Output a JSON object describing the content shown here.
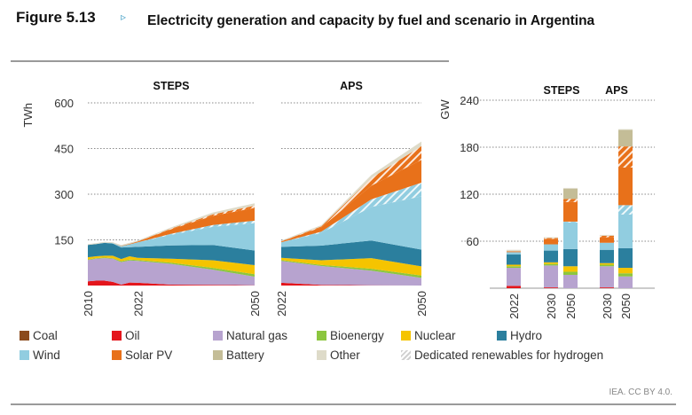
{
  "header": {
    "figure_label": "Figure 5.13",
    "arrow_icon": "▹",
    "title": "Electricity generation and capacity by fuel and scenario in Argentina"
  },
  "credit": "IEA. CC BY 4.0.",
  "colors": {
    "Coal": "#8b4a1c",
    "Oil": "#e4151c",
    "Natural gas": "#b7a3cf",
    "Bioenergy": "#8cc63f",
    "Nuclear": "#f5c400",
    "Hydro": "#2b7f9e",
    "Wind": "#91cde0",
    "Solar PV": "#e8711a",
    "Battery": "#c4bd97",
    "Other": "#dedbc9",
    "Dedicated renewables for hydrogen": "#d0d0d0"
  },
  "legend": [
    {
      "label": "Coal",
      "key": "Coal"
    },
    {
      "label": "Oil",
      "key": "Oil"
    },
    {
      "label": "Natural gas",
      "key": "Natural gas"
    },
    {
      "label": "Bioenergy",
      "key": "Bioenergy"
    },
    {
      "label": "Nuclear",
      "key": "Nuclear"
    },
    {
      "label": "Hydro",
      "key": "Hydro"
    },
    {
      "label": "Wind",
      "key": "Wind"
    },
    {
      "label": "Solar PV",
      "key": "Solar PV"
    },
    {
      "label": "Battery",
      "key": "Battery"
    },
    {
      "label": "Other",
      "key": "Other"
    },
    {
      "label": "Dedicated renewables for hydrogen",
      "key": "Dedicated renewables for hydrogen",
      "hatched": true
    }
  ],
  "chart_data": [
    {
      "type": "area",
      "title": "STEPS",
      "ylabel": "TWh",
      "ylim": [
        0,
        600
      ],
      "yticks": [
        150,
        300,
        450,
        600
      ],
      "xticks": [
        "2010",
        "2022",
        "2050"
      ],
      "grid": true,
      "x": [
        2010,
        2012,
        2014,
        2016,
        2018,
        2020,
        2022,
        2030,
        2040,
        2050
      ],
      "series": [
        {
          "name": "Oil",
          "values": [
            14,
            16,
            16,
            12,
            3,
            10,
            9,
            3,
            2,
            1
          ]
        },
        {
          "name": "Natural gas",
          "values": [
            70,
            72,
            74,
            76,
            74,
            72,
            72,
            68,
            50,
            28
          ]
        },
        {
          "name": "Bioenergy",
          "values": [
            2,
            2,
            2,
            2,
            3,
            3,
            3,
            4,
            6,
            8
          ]
        },
        {
          "name": "Nuclear",
          "values": [
            7,
            6,
            6,
            8,
            7,
            11,
            7,
            13,
            25,
            30
          ]
        },
        {
          "name": "Hydro",
          "values": [
            40,
            40,
            42,
            40,
            38,
            30,
            36,
            44,
            50,
            48
          ]
        },
        {
          "name": "Wind",
          "values": [
            0,
            0,
            1,
            1,
            4,
            9,
            15,
            35,
            60,
            90
          ]
        },
        {
          "name": "Wind (hydrogen)",
          "hatched": true,
          "values": [
            0,
            0,
            0,
            0,
            0,
            0,
            0,
            3,
            6,
            8
          ]
        },
        {
          "name": "Solar PV",
          "values": [
            0,
            0,
            0,
            0,
            1,
            2,
            3,
            15,
            30,
            42
          ]
        },
        {
          "name": "Solar PV (hydrogen)",
          "hatched": true,
          "values": [
            0,
            0,
            0,
            0,
            0,
            0,
            0,
            2,
            5,
            7
          ]
        },
        {
          "name": "Other",
          "values": [
            3,
            3,
            3,
            3,
            3,
            3,
            3,
            4,
            6,
            8
          ]
        }
      ]
    },
    {
      "type": "area",
      "title": "APS",
      "ylabel": "TWh",
      "ylim": [
        0,
        600
      ],
      "yticks": [
        150,
        300,
        450,
        600
      ],
      "xticks": [
        "2022",
        "2050"
      ],
      "grid": true,
      "x": [
        2022,
        2030,
        2040,
        2050
      ],
      "series": [
        {
          "name": "Oil",
          "values": [
            9,
            2,
            1,
            0
          ]
        },
        {
          "name": "Natural gas",
          "values": [
            72,
            62,
            48,
            25
          ]
        },
        {
          "name": "Bioenergy",
          "values": [
            3,
            4,
            6,
            8
          ]
        },
        {
          "name": "Nuclear",
          "values": [
            7,
            15,
            35,
            30
          ]
        },
        {
          "name": "Hydro",
          "values": [
            36,
            48,
            58,
            55
          ]
        },
        {
          "name": "Wind",
          "values": [
            15,
            42,
            110,
            175
          ]
        },
        {
          "name": "Wind (hydrogen)",
          "hatched": true,
          "values": [
            0,
            4,
            25,
            45
          ]
        },
        {
          "name": "Solar PV",
          "values": [
            3,
            14,
            45,
            75
          ]
        },
        {
          "name": "Solar PV (hydrogen)",
          "hatched": true,
          "values": [
            0,
            3,
            25,
            45
          ]
        },
        {
          "name": "Other",
          "values": [
            3,
            4,
            10,
            15
          ]
        }
      ]
    },
    {
      "type": "bar",
      "title_groups": [
        "STEPS",
        "APS"
      ],
      "ylabel": "GW",
      "ylim": [
        0,
        240
      ],
      "yticks": [
        60,
        120,
        180,
        240
      ],
      "grid": true,
      "categories": [
        "2022",
        "2030",
        "2050",
        "2030",
        "2050"
      ],
      "groups": [
        "",
        "STEPS",
        "STEPS",
        "APS",
        "APS"
      ],
      "series": [
        {
          "name": "Oil",
          "values": [
            3,
            1,
            0,
            1,
            0
          ]
        },
        {
          "name": "Natural gas",
          "values": [
            23,
            28,
            17,
            27,
            15
          ]
        },
        {
          "name": "Bioenergy",
          "values": [
            2,
            2,
            4,
            2,
            4
          ]
        },
        {
          "name": "Nuclear",
          "values": [
            2,
            2,
            7,
            2,
            7
          ]
        },
        {
          "name": "Hydro",
          "values": [
            13,
            15,
            22,
            17,
            25
          ]
        },
        {
          "name": "Wind",
          "values": [
            3,
            8,
            34,
            9,
            43
          ]
        },
        {
          "name": "Wind (hydrogen)",
          "hatched": true,
          "values": [
            0,
            0,
            1,
            0,
            12
          ]
        },
        {
          "name": "Solar PV",
          "values": [
            1,
            7,
            25,
            7,
            48
          ]
        },
        {
          "name": "Solar PV (hydrogen)",
          "hatched": true,
          "values": [
            0,
            1,
            4,
            2,
            27
          ]
        },
        {
          "name": "Battery",
          "values": [
            0,
            0,
            13,
            0,
            21
          ]
        },
        {
          "name": "Other",
          "values": [
            2,
            1,
            1,
            1,
            1
          ]
        }
      ]
    }
  ]
}
